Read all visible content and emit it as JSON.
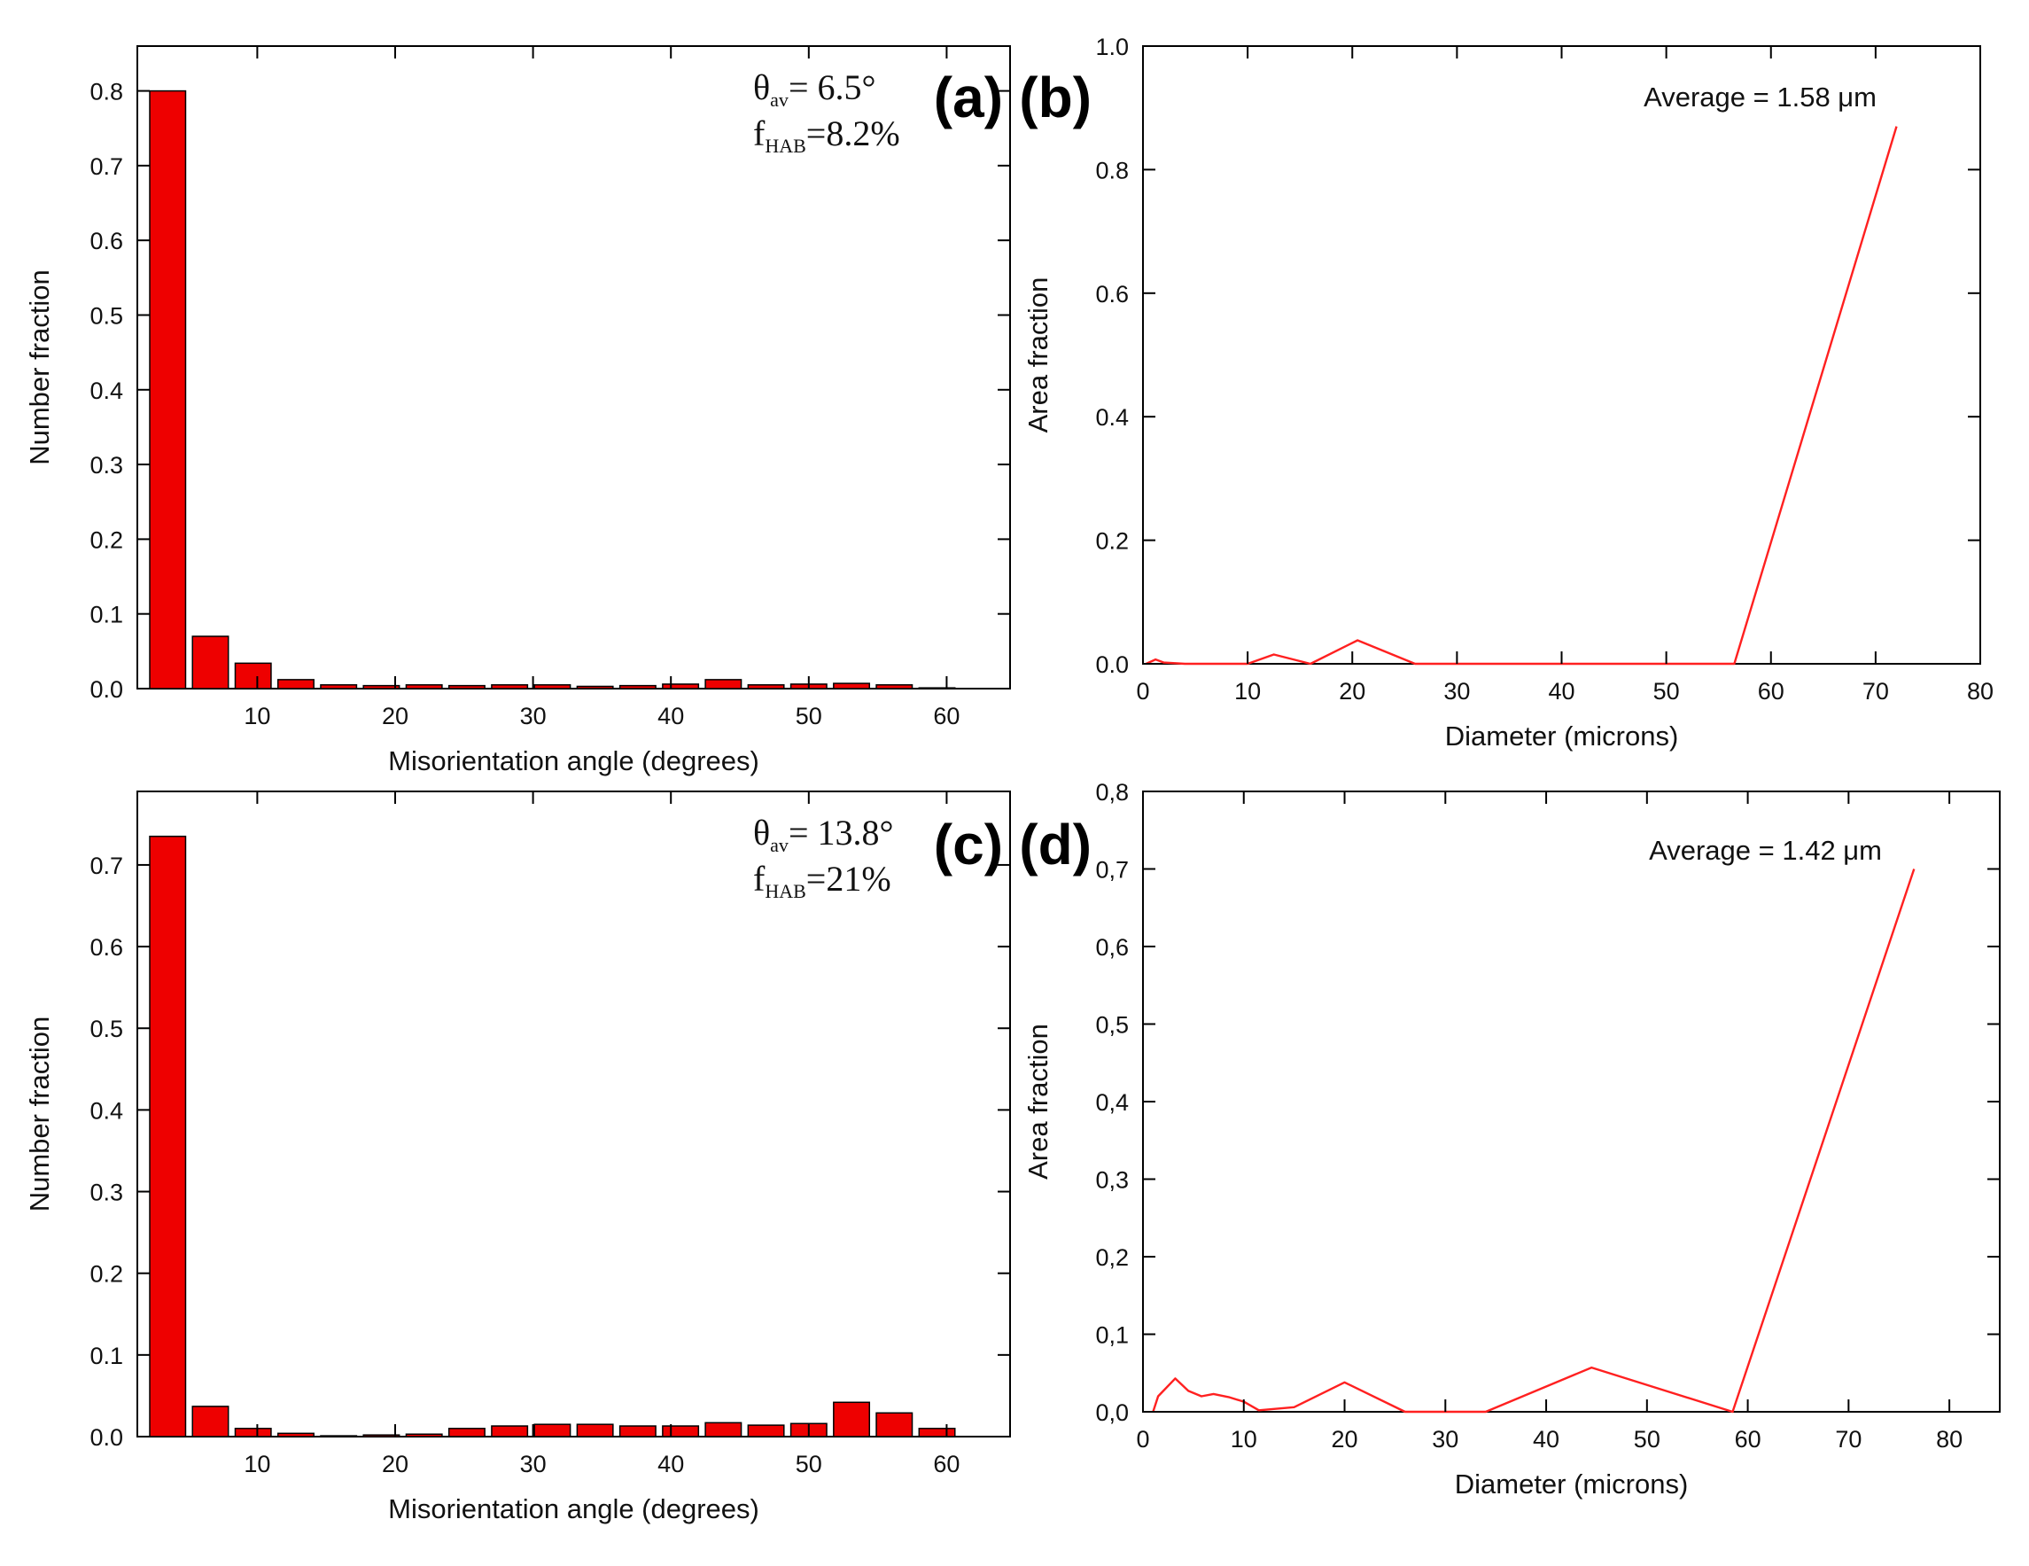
{
  "chart_data": [
    {
      "id": "a",
      "type": "bar",
      "panel_label": "(a)",
      "xlabel": "Misorientation angle (degrees)",
      "ylabel": "Number fraction",
      "xlim": [
        1.3,
        64.6
      ],
      "ylim": [
        0,
        0.86
      ],
      "xticks": [
        10,
        20,
        30,
        40,
        50,
        60
      ],
      "xtick_labels": [
        "10",
        "20",
        "30",
        "40",
        "50",
        "60"
      ],
      "yticks": [
        0,
        0.1,
        0.2,
        0.3,
        0.4,
        0.5,
        0.6,
        0.7,
        0.8
      ],
      "ytick_labels": [
        "0.0",
        "0.1",
        "0.2",
        "0.3",
        "0.4",
        "0.5",
        "0.6",
        "0.7",
        "0.8"
      ],
      "bar_color": "#ee0000",
      "bar_width": 2.6,
      "centers": [
        3.5,
        6.6,
        9.7,
        12.8,
        15.9,
        19.0,
        22.1,
        25.2,
        28.3,
        31.4,
        34.5,
        37.6,
        40.7,
        43.8,
        46.9,
        50.0,
        53.1,
        56.2,
        59.3
      ],
      "values": [
        0.8,
        0.07,
        0.034,
        0.012,
        0.005,
        0.004,
        0.005,
        0.004,
        0.005,
        0.005,
        0.003,
        0.004,
        0.006,
        0.012,
        0.005,
        0.006,
        0.007,
        0.005,
        0.001
      ],
      "annotation": {
        "theta_symbol": "θ",
        "theta_sub": "av",
        "theta_value": "= 6.5°",
        "f_symbol": "f",
        "f_sub": "HAB",
        "f_value": "=8.2%"
      }
    },
    {
      "id": "b",
      "type": "line",
      "panel_label": "(b)",
      "xlabel": "Diameter (microns)",
      "ylabel": "Area fraction",
      "xlim": [
        0,
        80
      ],
      "ylim": [
        0,
        1.0
      ],
      "xticks": [
        0,
        10,
        20,
        30,
        40,
        50,
        60,
        70,
        80
      ],
      "xtick_labels": [
        "0",
        "10",
        "20",
        "30",
        "40",
        "50",
        "60",
        "70",
        "80"
      ],
      "yticks": [
        0,
        0.2,
        0.4,
        0.6,
        0.8,
        1.0
      ],
      "ytick_labels": [
        "0.0",
        "0.2",
        "0.4",
        "0.6",
        "0.8",
        "1.0"
      ],
      "line_color": "#ff2020",
      "x": [
        0.3,
        1.2,
        2.0,
        4.0,
        8.0,
        10.0,
        12.5,
        16.0,
        20.5,
        26.0,
        35.0,
        45.0,
        56.5,
        72.0
      ],
      "y": [
        0.0,
        0.007,
        0.002,
        0.0,
        0.0,
        0.0,
        0.015,
        0.0,
        0.038,
        0.0,
        0.0,
        0.0,
        0.0,
        0.87
      ],
      "annotation": {
        "average_text": "Average = 1.58 μm"
      }
    },
    {
      "id": "c",
      "type": "bar",
      "panel_label": "(c)",
      "xlabel": "Misorientation angle (degrees)",
      "ylabel": "Number fraction",
      "xlim": [
        1.3,
        64.6
      ],
      "ylim": [
        0,
        0.79
      ],
      "xticks": [
        10,
        20,
        30,
        40,
        50,
        60
      ],
      "xtick_labels": [
        "10",
        "20",
        "30",
        "40",
        "50",
        "60"
      ],
      "yticks": [
        0,
        0.1,
        0.2,
        0.3,
        0.4,
        0.5,
        0.6,
        0.7
      ],
      "ytick_labels": [
        "0.0",
        "0.1",
        "0.2",
        "0.3",
        "0.4",
        "0.5",
        "0.6",
        "0.7"
      ],
      "bar_color": "#ee0000",
      "bar_width": 2.6,
      "centers": [
        3.5,
        6.6,
        9.7,
        12.8,
        15.9,
        19.0,
        22.1,
        25.2,
        28.3,
        31.4,
        34.5,
        37.6,
        40.7,
        43.8,
        46.9,
        50.0,
        53.1,
        56.2,
        59.3
      ],
      "values": [
        0.735,
        0.037,
        0.01,
        0.004,
        0.001,
        0.002,
        0.003,
        0.01,
        0.013,
        0.015,
        0.015,
        0.013,
        0.013,
        0.017,
        0.014,
        0.016,
        0.042,
        0.029,
        0.01
      ],
      "annotation": {
        "theta_symbol": "θ",
        "theta_sub": "av",
        "theta_value": "= 13.8°",
        "f_symbol": "f",
        "f_sub": "HAB",
        "f_value": "=21%"
      }
    },
    {
      "id": "d",
      "type": "line",
      "panel_label": "(d)",
      "xlabel": "Diameter (microns)",
      "ylabel": "Area fraction",
      "xlim": [
        0,
        85
      ],
      "ylim": [
        0,
        0.8
      ],
      "xticks": [
        0,
        10,
        20,
        30,
        40,
        50,
        60,
        70,
        80
      ],
      "xtick_labels": [
        "0",
        "10",
        "20",
        "30",
        "40",
        "50",
        "60",
        "70",
        "80"
      ],
      "yticks": [
        0,
        0.1,
        0.2,
        0.3,
        0.4,
        0.5,
        0.6,
        0.7,
        0.8
      ],
      "ytick_labels": [
        "0,0",
        "0,1",
        "0,2",
        "0,3",
        "0,4",
        "0,5",
        "0,6",
        "0,7",
        "0,8"
      ],
      "line_color": "#ff2020",
      "x": [
        1.0,
        1.5,
        3.2,
        4.5,
        5.8,
        7.0,
        8.5,
        10.0,
        11.5,
        15.0,
        20.0,
        26.0,
        34.0,
        44.5,
        58.5,
        76.5
      ],
      "y": [
        0.0,
        0.02,
        0.043,
        0.027,
        0.02,
        0.023,
        0.019,
        0.013,
        0.002,
        0.006,
        0.038,
        0.0,
        0.0,
        0.057,
        0.0,
        0.7
      ],
      "annotation": {
        "average_text": "Average = 1.42 μm"
      }
    }
  ]
}
